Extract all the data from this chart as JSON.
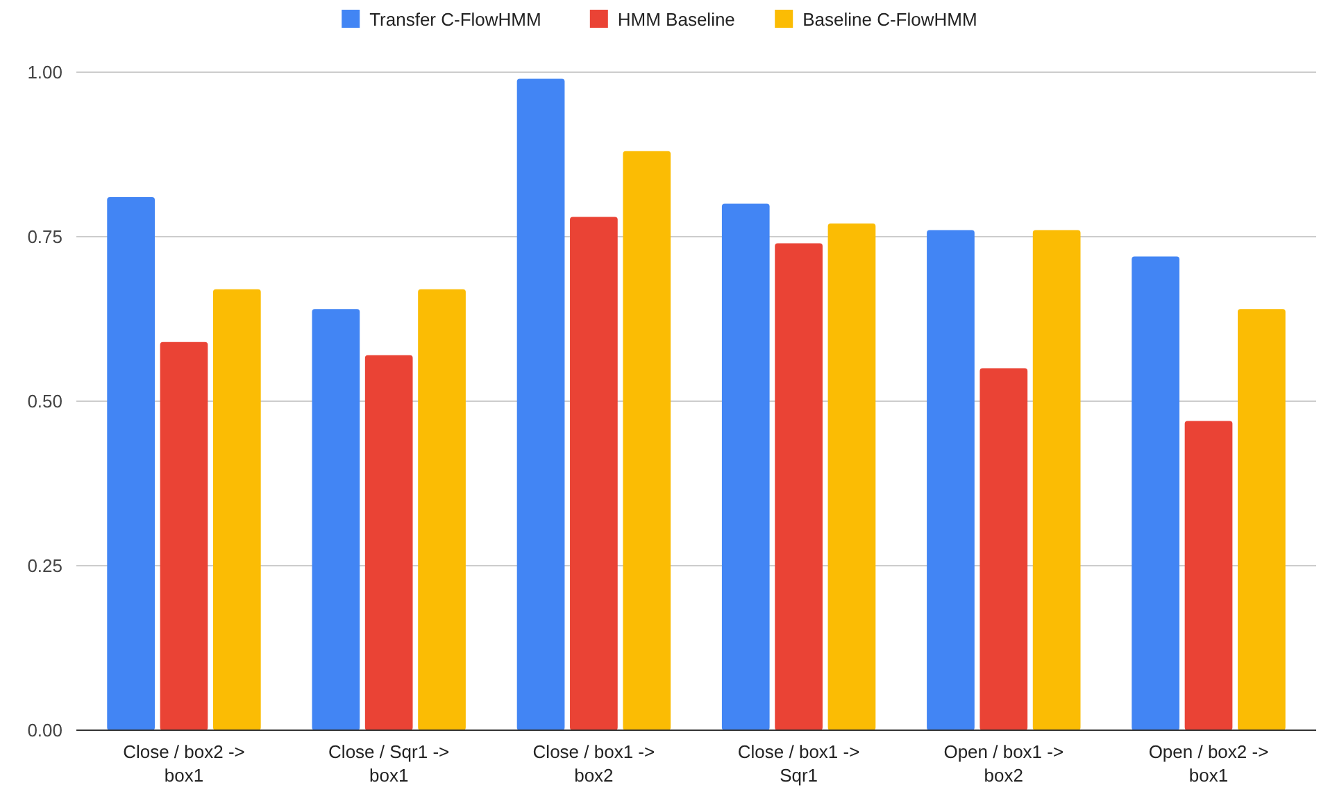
{
  "chart_data": {
    "type": "bar",
    "categories": [
      "Close / box2 -> box1",
      "Close / Sqr1 -> box1",
      "Close / box1 -> box2",
      "Close / box1 -> Sqr1",
      "Open / box1 -> box2",
      "Open / box2 -> box1"
    ],
    "series": [
      {
        "name": "Transfer C-FlowHMM",
        "color": "#4285f4",
        "values": [
          0.81,
          0.64,
          0.99,
          0.8,
          0.76,
          0.72
        ]
      },
      {
        "name": "HMM Baseline",
        "color": "#ea4335",
        "values": [
          0.59,
          0.57,
          0.78,
          0.74,
          0.55,
          0.47
        ]
      },
      {
        "name": "Baseline C-FlowHMM",
        "color": "#fbbc04",
        "values": [
          0.67,
          0.67,
          0.88,
          0.77,
          0.76,
          0.64
        ]
      }
    ],
    "ylim": [
      0,
      1
    ],
    "yticks": [
      {
        "value": 0,
        "label": "0.00"
      },
      {
        "value": 0.25,
        "label": "0.25"
      },
      {
        "value": 0.5,
        "label": "0.50"
      },
      {
        "value": 0.75,
        "label": "0.75"
      },
      {
        "value": 1,
        "label": "1.00"
      }
    ],
    "grid": "y",
    "legend": "top"
  }
}
